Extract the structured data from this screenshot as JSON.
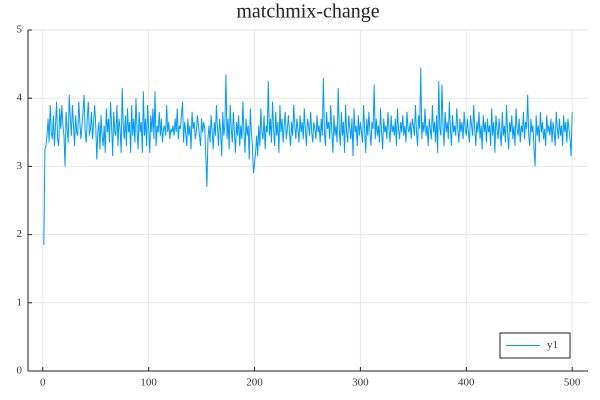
{
  "chart_data": {
    "type": "line",
    "title": "matchmix-change",
    "x": [
      1,
      2,
      3,
      4,
      5,
      6,
      7,
      8,
      9,
      10,
      11,
      12,
      13,
      14,
      15,
      16,
      17,
      18,
      19,
      20,
      21,
      22,
      23,
      24,
      25,
      26,
      27,
      28,
      29,
      30,
      31,
      32,
      33,
      34,
      35,
      36,
      37,
      38,
      39,
      40,
      41,
      42,
      43,
      44,
      45,
      46,
      47,
      48,
      49,
      50,
      51,
      52,
      53,
      54,
      55,
      56,
      57,
      58,
      59,
      60,
      61,
      62,
      63,
      64,
      65,
      66,
      67,
      68,
      69,
      70,
      71,
      72,
      73,
      74,
      75,
      76,
      77,
      78,
      79,
      80,
      81,
      82,
      83,
      84,
      85,
      86,
      87,
      88,
      89,
      90,
      91,
      92,
      93,
      94,
      95,
      96,
      97,
      98,
      99,
      100,
      101,
      102,
      103,
      104,
      105,
      106,
      107,
      108,
      109,
      110,
      111,
      112,
      113,
      114,
      115,
      116,
      117,
      118,
      119,
      120,
      121,
      122,
      123,
      124,
      125,
      126,
      127,
      128,
      129,
      130,
      131,
      132,
      133,
      134,
      135,
      136,
      137,
      138,
      139,
      140,
      141,
      142,
      143,
      144,
      145,
      146,
      147,
      148,
      149,
      150,
      151,
      152,
      153,
      154,
      155,
      156,
      157,
      158,
      159,
      160,
      161,
      162,
      163,
      164,
      165,
      166,
      167,
      168,
      169,
      170,
      171,
      172,
      173,
      174,
      175,
      176,
      177,
      178,
      179,
      180,
      181,
      182,
      183,
      184,
      185,
      186,
      187,
      188,
      189,
      190,
      191,
      192,
      193,
      194,
      195,
      196,
      197,
      198,
      199,
      200,
      201,
      202,
      203,
      204,
      205,
      206,
      207,
      208,
      209,
      210,
      211,
      212,
      213,
      214,
      215,
      216,
      217,
      218,
      219,
      220,
      221,
      222,
      223,
      224,
      225,
      226,
      227,
      228,
      229,
      230,
      231,
      232,
      233,
      234,
      235,
      236,
      237,
      238,
      239,
      240,
      241,
      242,
      243,
      244,
      245,
      246,
      247,
      248,
      249,
      250,
      251,
      252,
      253,
      254,
      255,
      256,
      257,
      258,
      259,
      260,
      261,
      262,
      263,
      264,
      265,
      266,
      267,
      268,
      269,
      270,
      271,
      272,
      273,
      274,
      275,
      276,
      277,
      278,
      279,
      280,
      281,
      282,
      283,
      284,
      285,
      286,
      287,
      288,
      289,
      290,
      291,
      292,
      293,
      294,
      295,
      296,
      297,
      298,
      299,
      300,
      301,
      302,
      303,
      304,
      305,
      306,
      307,
      308,
      309,
      310,
      311,
      312,
      313,
      314,
      315,
      316,
      317,
      318,
      319,
      320,
      321,
      322,
      323,
      324,
      325,
      326,
      327,
      328,
      329,
      330,
      331,
      332,
      333,
      334,
      335,
      336,
      337,
      338,
      339,
      340,
      341,
      342,
      343,
      344,
      345,
      346,
      347,
      348,
      349,
      350,
      351,
      352,
      353,
      354,
      355,
      356,
      357,
      358,
      359,
      360,
      361,
      362,
      363,
      364,
      365,
      366,
      367,
      368,
      369,
      370,
      371,
      372,
      373,
      374,
      375,
      376,
      377,
      378,
      379,
      380,
      381,
      382,
      383,
      384,
      385,
      386,
      387,
      388,
      389,
      390,
      391,
      392,
      393,
      394,
      395,
      396,
      397,
      398,
      399,
      400,
      401,
      402,
      403,
      404,
      405,
      406,
      407,
      408,
      409,
      410,
      411,
      412,
      413,
      414,
      415,
      416,
      417,
      418,
      419,
      420,
      421,
      422,
      423,
      424,
      425,
      426,
      427,
      428,
      429,
      430,
      431,
      432,
      433,
      434,
      435,
      436,
      437,
      438,
      439,
      440,
      441,
      442,
      443,
      444,
      445,
      446,
      447,
      448,
      449,
      450,
      451,
      452,
      453,
      454,
      455,
      456,
      457,
      458,
      459,
      460,
      461,
      462,
      463,
      464,
      465,
      466,
      467,
      468,
      469,
      470,
      471,
      472,
      473,
      474,
      475,
      476,
      477,
      478,
      479,
      480,
      481,
      482,
      483,
      484,
      485,
      486,
      487,
      488,
      489,
      490,
      491,
      492,
      493,
      494,
      495,
      496,
      497,
      498,
      499,
      500
    ],
    "series": [
      {
        "name": "y1",
        "color": "#009af9",
        "values": [
          1.85,
          3.25,
          3.3,
          3.45,
          3.7,
          3.35,
          3.9,
          3.5,
          3.4,
          3.75,
          3.3,
          3.6,
          3.95,
          3.4,
          3.3,
          3.85,
          3.55,
          3.9,
          3.6,
          3.45,
          3.0,
          3.8,
          3.55,
          3.35,
          4.05,
          3.7,
          3.45,
          3.9,
          3.6,
          3.3,
          3.75,
          3.5,
          3.45,
          3.95,
          3.65,
          3.4,
          3.6,
          3.8,
          4.05,
          3.5,
          3.35,
          3.7,
          3.95,
          3.45,
          3.55,
          3.8,
          3.4,
          3.65,
          3.9,
          3.6,
          3.1,
          3.5,
          3.65,
          3.25,
          3.75,
          3.45,
          3.3,
          3.6,
          3.2,
          3.85,
          3.5,
          3.7,
          3.35,
          3.95,
          3.6,
          3.15,
          3.8,
          3.5,
          3.45,
          3.9,
          3.3,
          3.7,
          3.55,
          3.2,
          4.15,
          3.6,
          3.4,
          3.75,
          3.3,
          3.85,
          3.5,
          3.65,
          3.2,
          3.9,
          3.45,
          3.7,
          3.35,
          4.0,
          3.55,
          3.25,
          3.8,
          3.5,
          3.65,
          3.2,
          4.1,
          3.45,
          3.7,
          3.3,
          3.9,
          3.55,
          3.2,
          3.75,
          3.5,
          3.85,
          3.4,
          4.1,
          3.3,
          3.6,
          3.5,
          3.8,
          3.45,
          3.7,
          3.35,
          3.55,
          3.6,
          3.45,
          3.9,
          3.5,
          3.65,
          3.4,
          3.55,
          3.5,
          3.6,
          3.45,
          3.7,
          3.5,
          3.85,
          3.4,
          3.6,
          3.55,
          3.75,
          3.95,
          3.35,
          3.65,
          3.5,
          3.3,
          3.7,
          3.45,
          3.6,
          3.25,
          3.8,
          3.55,
          3.65,
          3.4,
          3.5,
          3.75,
          3.6,
          3.45,
          3.3,
          3.7,
          3.5,
          3.65,
          3.55,
          3.15,
          2.7,
          3.4,
          3.6,
          3.35,
          3.75,
          3.5,
          3.25,
          3.65,
          3.45,
          3.9,
          3.55,
          3.3,
          3.7,
          3.5,
          3.15,
          3.8,
          3.45,
          3.6,
          4.35,
          3.4,
          3.7,
          3.25,
          3.9,
          3.55,
          3.35,
          3.8,
          3.5,
          3.2,
          3.65,
          3.45,
          3.75,
          3.3,
          3.6,
          3.4,
          3.95,
          3.5,
          3.2,
          3.7,
          3.45,
          3.6,
          3.1,
          3.85,
          3.5,
          3.3,
          2.9,
          3.05,
          3.2,
          3.45,
          3.15,
          3.6,
          3.3,
          3.85,
          3.5,
          3.4,
          3.75,
          3.25,
          3.6,
          3.5,
          4.25,
          3.45,
          3.7,
          3.35,
          3.95,
          3.55,
          3.3,
          3.8,
          3.45,
          3.65,
          3.2,
          3.9,
          3.5,
          3.7,
          3.35,
          3.6,
          3.8,
          3.4,
          3.55,
          3.75,
          3.5,
          3.3,
          3.65,
          3.45,
          3.9,
          3.6,
          3.4,
          3.7,
          3.55,
          3.35,
          3.75,
          3.5,
          3.65,
          3.4,
          3.85,
          3.55,
          3.3,
          3.7,
          3.6,
          3.45,
          3.8,
          3.5,
          3.35,
          3.65,
          3.55,
          3.4,
          3.75,
          3.5,
          3.6,
          3.35,
          3.7,
          3.45,
          4.3,
          3.5,
          3.3,
          3.8,
          3.55,
          3.65,
          3.4,
          3.9,
          3.5,
          3.2,
          3.75,
          3.45,
          3.6,
          3.35,
          4.15,
          3.55,
          3.3,
          3.8,
          3.45,
          3.65,
          3.2,
          3.9,
          3.5,
          3.35,
          3.75,
          3.55,
          3.4,
          3.7,
          3.15,
          3.85,
          3.5,
          3.6,
          3.3,
          3.75,
          3.45,
          3.65,
          3.5,
          3.35,
          3.9,
          3.55,
          3.2,
          3.7,
          3.45,
          3.8,
          3.5,
          3.3,
          3.65,
          3.55,
          4.2,
          3.4,
          3.7,
          3.45,
          3.6,
          3.35,
          3.85,
          3.5,
          3.25,
          3.7,
          3.5,
          3.6,
          3.4,
          3.8,
          3.55,
          3.35,
          3.75,
          3.5,
          3.6,
          3.45,
          3.7,
          3.3,
          3.85,
          3.55,
          3.4,
          3.65,
          3.5,
          3.75,
          3.45,
          3.6,
          3.35,
          3.8,
          3.55,
          3.5,
          3.65,
          3.4,
          3.7,
          3.6,
          3.45,
          3.9,
          3.5,
          3.3,
          3.75,
          3.55,
          4.45,
          3.4,
          3.65,
          3.5,
          3.85,
          3.45,
          3.6,
          3.3,
          3.7,
          3.55,
          3.4,
          3.9,
          3.5,
          3.65,
          3.35,
          3.75,
          3.2,
          4.25,
          3.55,
          3.45,
          4.2,
          3.6,
          3.3,
          3.8,
          3.5,
          3.65,
          3.4,
          3.95,
          3.55,
          3.3,
          3.75,
          3.5,
          3.6,
          3.45,
          3.85,
          3.55,
          3.35,
          3.7,
          3.5,
          3.65,
          3.4,
          3.8,
          3.55,
          3.45,
          3.7,
          3.5,
          3.35,
          3.75,
          3.6,
          3.45,
          3.9,
          3.55,
          3.3,
          3.65,
          3.5,
          3.8,
          3.4,
          3.6,
          3.25,
          3.75,
          3.5,
          3.65,
          3.35,
          3.7,
          3.5,
          3.6,
          3.3,
          3.85,
          3.45,
          3.65,
          3.2,
          3.75,
          3.55,
          3.4,
          3.7,
          3.5,
          3.3,
          3.8,
          3.45,
          3.6,
          3.35,
          3.9,
          3.5,
          3.25,
          3.65,
          3.5,
          3.75,
          3.4,
          3.6,
          3.3,
          3.85,
          3.55,
          3.45,
          3.7,
          3.35,
          3.6,
          3.5,
          3.8,
          3.4,
          3.65,
          3.55,
          4.05,
          3.45,
          3.3,
          3.7,
          3.5,
          3.6,
          3.25,
          3.0,
          3.75,
          3.45,
          3.6,
          3.35,
          3.8,
          3.5,
          3.65,
          3.4,
          3.55,
          3.3,
          3.75,
          3.5,
          3.6,
          3.45,
          3.7,
          3.35,
          3.65,
          3.5,
          3.3,
          3.8,
          3.55,
          3.4,
          3.7,
          3.45,
          3.6,
          3.3,
          3.75,
          3.5,
          3.65,
          3.35,
          3.7,
          3.55,
          3.4,
          3.15,
          3.8
        ]
      }
    ],
    "xlim": [
      -13.97,
      514.97
    ],
    "xticks": [
      0,
      100,
      200,
      300,
      400,
      500
    ],
    "ylim": [
      0,
      5
    ],
    "yticks": [
      0,
      1,
      2,
      3,
      4,
      5
    ],
    "grid": true,
    "legend": "bottom-right"
  }
}
